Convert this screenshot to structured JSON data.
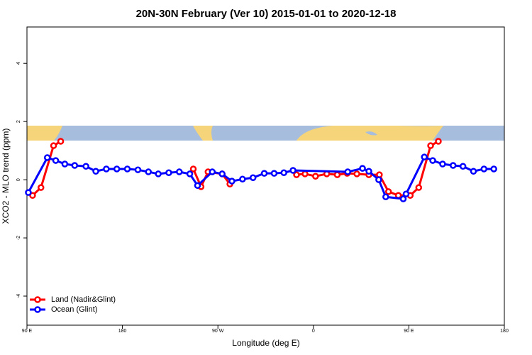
{
  "chart_data": {
    "type": "line",
    "title": "20N-30N February (Ver 10)   2015-01-01 to 2020-12-18",
    "x_label": "Longitude (deg E)",
    "y_label": "XCO2 - MLO trend (ppm)",
    "xlim": [
      90,
      540
    ],
    "ylim": [
      -5,
      5.25
    ],
    "xticks": [
      {
        "value": 90,
        "label": "90 E"
      },
      180,
      {
        "value": 270,
        "label": "90 W"
      },
      {
        "value": 360,
        "label": "0"
      },
      {
        "value": 450,
        "label": "90 E"
      },
      {
        "value": 540,
        "label": "180"
      }
    ],
    "yticks": [
      -4,
      -2,
      0,
      2,
      4
    ],
    "legend": "bottom-left",
    "series": [
      {
        "name": "Land (Nadir&Glint)",
        "color": "#ff0000",
        "x": [
          95.3,
          103.2,
          115.1,
          121.8,
          null,
          246.8,
          254.1,
          260.7,
          274.0,
          281.3,
          null,
          344.1,
          352.1,
          362.0,
          372.6,
          382.5,
          391.8,
          401.0,
          412.3,
          422.2,
          430.8,
          440.1,
          451.3,
          459.3,
          470.5,
          477.8
        ],
        "values": [
          -0.54,
          -0.27,
          1.17,
          1.32,
          null,
          0.37,
          -0.24,
          0.27,
          0.2,
          -0.15,
          null,
          0.17,
          0.2,
          0.12,
          0.2,
          0.17,
          0.22,
          0.2,
          0.17,
          0.17,
          -0.41,
          -0.54,
          -0.54,
          -0.27,
          1.17,
          1.32
        ]
      },
      {
        "name": "Ocean (Glint)",
        "color": "#0000ff",
        "x": [
          91.3,
          109.2,
          117.1,
          125.7,
          135.0,
          145.6,
          154.9,
          164.8,
          174.7,
          184.6,
          194.6,
          204.5,
          213.8,
          223.7,
          233.6,
          243.5,
          250.8,
          264.7,
          274.0,
          283.2,
          293.2,
          303.1,
          313.7,
          323.0,
          332.2,
          340.8,
          392.4,
          406.3,
          412.3,
          421.6,
          428.2,
          444.7,
          447.4,
          464.6,
          472.5,
          481.8,
          491.7,
          501.0,
          510.9,
          520.8,
          530.1
        ],
        "values": [
          -0.44,
          0.76,
          0.66,
          0.54,
          0.49,
          0.46,
          0.29,
          0.37,
          0.37,
          0.37,
          0.34,
          0.27,
          0.2,
          0.24,
          0.27,
          0.2,
          -0.2,
          0.27,
          0.2,
          -0.05,
          0.02,
          0.07,
          0.22,
          0.22,
          0.24,
          0.32,
          0.27,
          0.39,
          0.29,
          0,
          -0.59,
          -0.66,
          -0.49,
          0.78,
          0.66,
          0.54,
          0.49,
          0.46,
          0.29,
          0.37,
          0.37
        ]
      }
    ]
  }
}
